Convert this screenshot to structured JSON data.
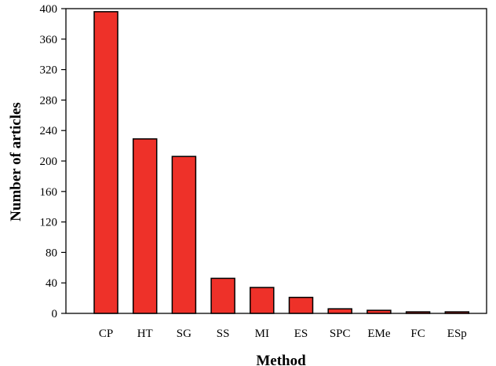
{
  "chart_data": {
    "type": "bar",
    "title": "",
    "xlabel": "Method",
    "ylabel": "Number of articles",
    "categories": [
      "CP",
      "HT",
      "SG",
      "SS",
      "MI",
      "ES",
      "SPC",
      "EMe",
      "FC",
      "ESp"
    ],
    "values": [
      396,
      229,
      206,
      46,
      34,
      21,
      6,
      4,
      2,
      2
    ],
    "ylim": [
      0,
      400
    ],
    "yticks": [
      0,
      40,
      80,
      120,
      160,
      200,
      240,
      280,
      320,
      360,
      400
    ],
    "grid": false,
    "legend": "none",
    "bar_color": "#ee3129",
    "bar_edge_color": "#000000"
  }
}
